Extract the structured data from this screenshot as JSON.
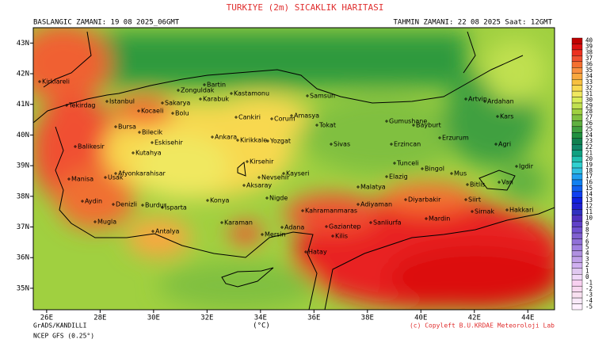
{
  "header": {
    "title": "TURKIYE (2m) SICAKLIK HARITASI",
    "start": "BASLANGIC ZAMANI: 19 08 2025_06GMT",
    "forecast": "TAHMIN ZAMANI: 22 08 2025 Saat: 12GMT"
  },
  "map": {
    "lonlim": [
      25.5,
      45
    ],
    "latlim": [
      34.3,
      43.5
    ],
    "lon_ticks": [
      {
        "value": 26,
        "label": "26E"
      },
      {
        "value": 28,
        "label": "28E"
      },
      {
        "value": 30,
        "label": "30E"
      },
      {
        "value": 32,
        "label": "32E"
      },
      {
        "value": 34,
        "label": "34E"
      },
      {
        "value": 36,
        "label": "36E"
      },
      {
        "value": 38,
        "label": "38E"
      },
      {
        "value": 40,
        "label": "40E"
      },
      {
        "value": 42,
        "label": "42E"
      },
      {
        "value": 44,
        "label": "44E"
      }
    ],
    "lat_ticks": [
      {
        "value": 35,
        "label": "35N"
      },
      {
        "value": 36,
        "label": "36N"
      },
      {
        "value": 37,
        "label": "37N"
      },
      {
        "value": 38,
        "label": "38N"
      },
      {
        "value": 39,
        "label": "39N"
      },
      {
        "value": 40,
        "label": "40N"
      },
      {
        "value": 41,
        "label": "41N"
      },
      {
        "value": 42,
        "label": "42N"
      },
      {
        "value": 43,
        "label": "43N"
      }
    ],
    "cities": [
      "Kirklareli",
      "Tekirdag",
      "Istanbul",
      "Kocaeli",
      "Sakarya",
      "Bolu",
      "Zonguldak",
      "Bartin",
      "Karabuk",
      "Kastamonu",
      "Samsun",
      "Amasya",
      "Corum",
      "Cankiri",
      "Tokat",
      "Artvin",
      "Ardahan",
      "Kars",
      "Gumushane",
      "Bayburt",
      "Erzurum",
      "Agri",
      "Erzincan",
      "Igdir",
      "Bursa",
      "Bilecik",
      "Eskisehir",
      "Balikesir",
      "Kutahya",
      "Ankara",
      "Kirikkale",
      "Yozgat",
      "Sivas",
      "Afyonkarahisar",
      "Usak",
      "Manisa",
      "Aydin",
      "Denizli",
      "Burdur",
      "Isparta",
      "Mugla",
      "Antalya",
      "Kirsehir",
      "Nevsehir",
      "Kayseri",
      "Aksaray",
      "Konya",
      "Nigde",
      "Karaman",
      "Mersin",
      "Adana",
      "Kahramanmaras",
      "Gaziantep",
      "Kilis",
      "Hatay",
      "Adiyaman",
      "Sanliurfa",
      "Malatya",
      "Elazig",
      "Tunceli",
      "Bingol",
      "Mus",
      "Bitlis",
      "Van",
      "Diyarbakir",
      "Siirt",
      "Mardin",
      "Sirnak",
      "Hakkari"
    ]
  },
  "colorbar": {
    "levels": [
      40,
      39,
      38,
      37,
      36,
      35,
      34,
      33,
      32,
      31,
      30,
      29,
      28,
      27,
      26,
      25,
      24,
      23,
      22,
      21,
      20,
      19,
      18,
      17,
      16,
      15,
      14,
      13,
      12,
      11,
      10,
      9,
      8,
      7,
      6,
      5,
      4,
      3,
      2,
      1,
      0,
      -1,
      -2,
      -3,
      -4,
      -5
    ],
    "colors": [
      "#c00000",
      "#dc1010",
      "#ec3020",
      "#f05030",
      "#f47030",
      "#f89040",
      "#f8a840",
      "#f8c040",
      "#f8d850",
      "#f0e860",
      "#d8ec58",
      "#c0e050",
      "#a0d040",
      "#80c040",
      "#60b040",
      "#40a040",
      "#209040",
      "#108050",
      "#108868",
      "#10a080",
      "#20c0b0",
      "#30d0d0",
      "#30c0e0",
      "#20a0f0",
      "#1080f0",
      "#1060f0",
      "#1040f0",
      "#1020e0",
      "#2020d0",
      "#3030c0",
      "#5030c0",
      "#6040c8",
      "#7050d0",
      "#8060d0",
      "#9070d8",
      "#a080e0",
      "#b090e0",
      "#c0a0e8",
      "#d0b0f0",
      "#e0c8f0",
      "#f0d8f8",
      "#f8d0f0",
      "#f8d8f0",
      "#f8e0f0",
      "#f8e8f8",
      "#fff0ff"
    ]
  },
  "footer": {
    "source": "GrADS/KANDILLI",
    "model": "NCEP GFS (0.25°)",
    "unit": "(°C)",
    "copyright": "(c) Copyleft B.U.KRDAE Meteoroloji Lab"
  }
}
